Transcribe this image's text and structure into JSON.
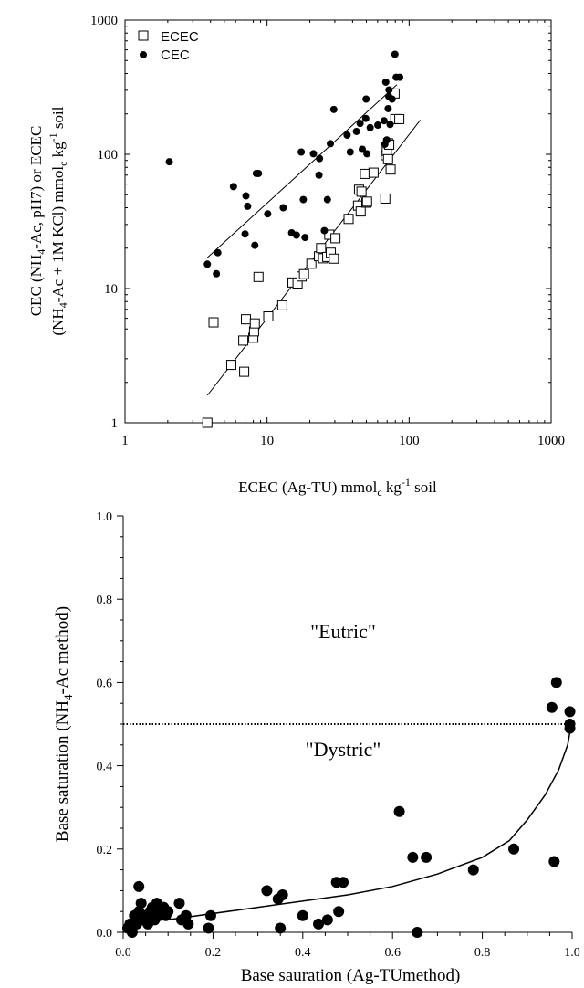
{
  "chart_data": [
    {
      "type": "scatter",
      "xscale": "log",
      "yscale": "log",
      "xlim": [
        1,
        1000
      ],
      "ylim": [
        1,
        1000
      ],
      "x_ticks": [
        "1",
        "10",
        "100",
        "1000"
      ],
      "y_ticks": [
        "1",
        "10",
        "100",
        "1000"
      ],
      "xlabel": {
        "a": "ECEC (Ag-TU) mmol",
        "sub": "c",
        "b": " kg",
        "sup": "-1",
        "c": " soil"
      },
      "ylabel_line1": {
        "a": "CEC (NH",
        "sub1": "4",
        "b": "-Ac, pH7) or ECEC"
      },
      "ylabel_line2": {
        "a": "(NH",
        "sub1": "4",
        "b": "-Ac + 1M KCl) mmol",
        "sub2": "c",
        "c": " kg",
        "sup": "-1",
        "d": " soil"
      },
      "legend": {
        "placement": "top-left",
        "entries": [
          "ECEC",
          "CEC"
        ]
      },
      "series": [
        {
          "name": "ECEC",
          "marker": "open-square",
          "points": [
            [
              3.8,
              1.0
            ],
            [
              4.2,
              5.6
            ],
            [
              5.6,
              2.7
            ],
            [
              6.8,
              4.1
            ],
            [
              6.9,
              2.4
            ],
            [
              7.1,
              5.9
            ],
            [
              8.0,
              4.3
            ],
            [
              8.1,
              4.8
            ],
            [
              8.2,
              5.5
            ],
            [
              8.7,
              12.2
            ],
            [
              10.2,
              6.2
            ],
            [
              12.8,
              7.5
            ],
            [
              15.1,
              11.1
            ],
            [
              16.4,
              10.9
            ],
            [
              17.5,
              12.3
            ],
            [
              18.2,
              12.8
            ],
            [
              20.5,
              15.3
            ],
            [
              23.2,
              17.4
            ],
            [
              24.0,
              20.0
            ],
            [
              24.8,
              16.8
            ],
            [
              26.5,
              17.2
            ],
            [
              27.4,
              25.2
            ],
            [
              28.1,
              18.5
            ],
            [
              29.5,
              16.7
            ],
            [
              30.3,
              23.7
            ],
            [
              37.5,
              33.0
            ],
            [
              43.7,
              41.5
            ],
            [
              44.4,
              54.5
            ],
            [
              45.6,
              37.5
            ],
            [
              46.2,
              52.7
            ],
            [
              48.9,
              71.5
            ],
            [
              50.0,
              43.6
            ],
            [
              50.6,
              44.4
            ],
            [
              56.2,
              73.0
            ],
            [
              68.0,
              46.8
            ],
            [
              68.5,
              98.4
            ],
            [
              69.6,
              106.0
            ],
            [
              71.1,
              92.0
            ],
            [
              71.1,
              121.0
            ],
            [
              72.5,
              118.0
            ],
            [
              74.1,
              77.0
            ],
            [
              79.0,
              284.0
            ],
            [
              80.0,
              183.0
            ],
            [
              85.3,
              183.0
            ]
          ],
          "fit": [
            [
              3.8,
              1.6
            ],
            [
              120,
              180
            ]
          ]
        },
        {
          "name": "CEC",
          "marker": "filled-circle",
          "points": [
            [
              2.05,
              88
            ],
            [
              3.8,
              15.2
            ],
            [
              4.4,
              12.9
            ],
            [
              4.5,
              18.5
            ],
            [
              5.8,
              57.5
            ],
            [
              7.0,
              25.5
            ],
            [
              7.1,
              49
            ],
            [
              7.3,
              41
            ],
            [
              8.2,
              21
            ],
            [
              8.4,
              72
            ],
            [
              8.7,
              72
            ],
            [
              10.1,
              36
            ],
            [
              13.0,
              40
            ],
            [
              14.9,
              26
            ],
            [
              16.1,
              25
            ],
            [
              17.4,
              104
            ],
            [
              18.0,
              46
            ],
            [
              18.5,
              24
            ],
            [
              21.2,
              101
            ],
            [
              23.2,
              70
            ],
            [
              23.4,
              93
            ],
            [
              25.3,
              27
            ],
            [
              26.6,
              46
            ],
            [
              27.9,
              120
            ],
            [
              29.5,
              216
            ],
            [
              36.6,
              139
            ],
            [
              38.5,
              104
            ],
            [
              42.6,
              148
            ],
            [
              45.2,
              170
            ],
            [
              46.8,
              109
            ],
            [
              49.5,
              185
            ],
            [
              49.8,
              258
            ],
            [
              50.5,
              101
            ],
            [
              53.2,
              158
            ],
            [
              60.2,
              165
            ],
            [
              66.7,
              178
            ],
            [
              67.5,
              119
            ],
            [
              68.5,
              345
            ],
            [
              69.6,
              128
            ],
            [
              71.2,
              219
            ],
            [
              71.9,
              270
            ],
            [
              72.2,
              302
            ],
            [
              73.5,
              167
            ],
            [
              75.9,
              258
            ],
            [
              79.5,
              556
            ],
            [
              81.1,
              375
            ],
            [
              85.9,
              375
            ]
          ],
          "fit": [
            [
              3.8,
              17
            ],
            [
              82,
              330
            ]
          ]
        }
      ]
    },
    {
      "type": "scatter",
      "xlim": [
        0.0,
        1.0
      ],
      "ylim": [
        0.0,
        1.0
      ],
      "x_ticks": [
        "0.0",
        "0.2",
        "0.4",
        "0.6",
        "0.8",
        "1.0"
      ],
      "y_ticks": [
        "0.0",
        "0.2",
        "0.4",
        "0.6",
        "0.8",
        "1.0"
      ],
      "xlabel": "Base sauration (Ag-TUmethod)",
      "ylabel": {
        "a": "Base saturation (NH",
        "sub": "4",
        "b": "-Ac method)"
      },
      "annotations": [
        "\"Eutric\"",
        "\"Dystric\""
      ],
      "threshold_y": 0.5,
      "series": [
        {
          "marker": "filled-circle",
          "points": [
            [
              0.01,
              0.01
            ],
            [
              0.015,
              0.02
            ],
            [
              0.02,
              0.0
            ],
            [
              0.025,
              0.04
            ],
            [
              0.03,
              0.02
            ],
            [
              0.035,
              0.11
            ],
            [
              0.035,
              0.05
            ],
            [
              0.04,
              0.07
            ],
            [
              0.045,
              0.03
            ],
            [
              0.05,
              0.04
            ],
            [
              0.055,
              0.02
            ],
            [
              0.06,
              0.05
            ],
            [
              0.065,
              0.06
            ],
            [
              0.07,
              0.03
            ],
            [
              0.075,
              0.07
            ],
            [
              0.08,
              0.04
            ],
            [
              0.085,
              0.05
            ],
            [
              0.09,
              0.06
            ],
            [
              0.095,
              0.04
            ],
            [
              0.1,
              0.05
            ],
            [
              0.125,
              0.07
            ],
            [
              0.13,
              0.03
            ],
            [
              0.14,
              0.04
            ],
            [
              0.145,
              0.02
            ],
            [
              0.19,
              0.01
            ],
            [
              0.195,
              0.04
            ],
            [
              0.32,
              0.1
            ],
            [
              0.345,
              0.08
            ],
            [
              0.35,
              0.01
            ],
            [
              0.355,
              0.09
            ],
            [
              0.4,
              0.04
            ],
            [
              0.435,
              0.02
            ],
            [
              0.455,
              0.03
            ],
            [
              0.475,
              0.12
            ],
            [
              0.48,
              0.05
            ],
            [
              0.49,
              0.12
            ],
            [
              0.615,
              0.29
            ],
            [
              0.645,
              0.18
            ],
            [
              0.655,
              0.0
            ],
            [
              0.675,
              0.18
            ],
            [
              0.78,
              0.15
            ],
            [
              0.87,
              0.2
            ],
            [
              0.955,
              0.54
            ],
            [
              0.96,
              0.17
            ],
            [
              0.965,
              0.6
            ],
            [
              0.995,
              0.49
            ],
            [
              0.995,
              0.5
            ],
            [
              0.995,
              0.53
            ]
          ],
          "fit": [
            [
              0.1,
              0.03
            ],
            [
              0.3,
              0.06
            ],
            [
              0.5,
              0.09
            ],
            [
              0.6,
              0.11
            ],
            [
              0.7,
              0.14
            ],
            [
              0.8,
              0.18
            ],
            [
              0.86,
              0.22
            ],
            [
              0.9,
              0.27
            ],
            [
              0.94,
              0.33
            ],
            [
              0.97,
              0.39
            ],
            [
              0.99,
              0.45
            ],
            [
              1.0,
              0.51
            ]
          ]
        }
      ]
    }
  ]
}
